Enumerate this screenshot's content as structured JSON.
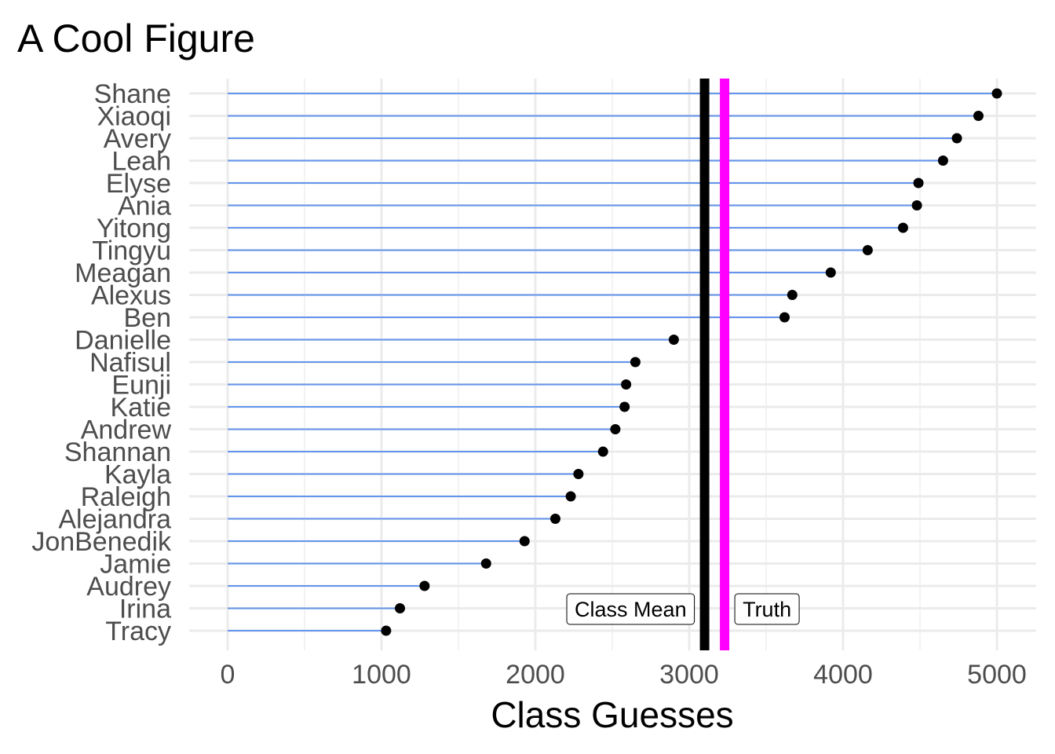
{
  "chart_data": {
    "type": "lollipop",
    "title": "A Cool Figure",
    "xlabel": "Class Guesses",
    "ylabel": "",
    "xlim": [
      -120,
      5120
    ],
    "xticks": [
      0,
      1000,
      2000,
      3000,
      4000,
      5000
    ],
    "grid": true,
    "categories": [
      "Shane",
      "Xiaoqi",
      "Avery",
      "Leah",
      "Elyse",
      "Ania",
      "Yitong",
      "Tingyu",
      "Meagan",
      "Alexus",
      "Ben",
      "Danielle",
      "Nafisul",
      "Eunji",
      "Katie",
      "Andrew",
      "Shannan",
      "Kayla",
      "Raleigh",
      "Alejandra",
      "JonBenedik",
      "Jamie",
      "Audrey",
      "Irina",
      "Tracy"
    ],
    "values": [
      5000,
      4880,
      4740,
      4650,
      4490,
      4480,
      4390,
      4160,
      3920,
      3670,
      3620,
      2900,
      2650,
      2590,
      2580,
      2520,
      2440,
      2280,
      2230,
      2130,
      1930,
      1680,
      1280,
      1120,
      1030
    ],
    "reference_lines": [
      {
        "label": "Class Mean",
        "value": 3100,
        "color": "#000000"
      },
      {
        "label": "Truth",
        "value": 3230,
        "color": "#ff00ff"
      }
    ],
    "colors": {
      "stem": "#6495ed",
      "point": "#000000",
      "grid_major": "#ebebeb",
      "grid_minor": "#f3f3f3"
    }
  }
}
